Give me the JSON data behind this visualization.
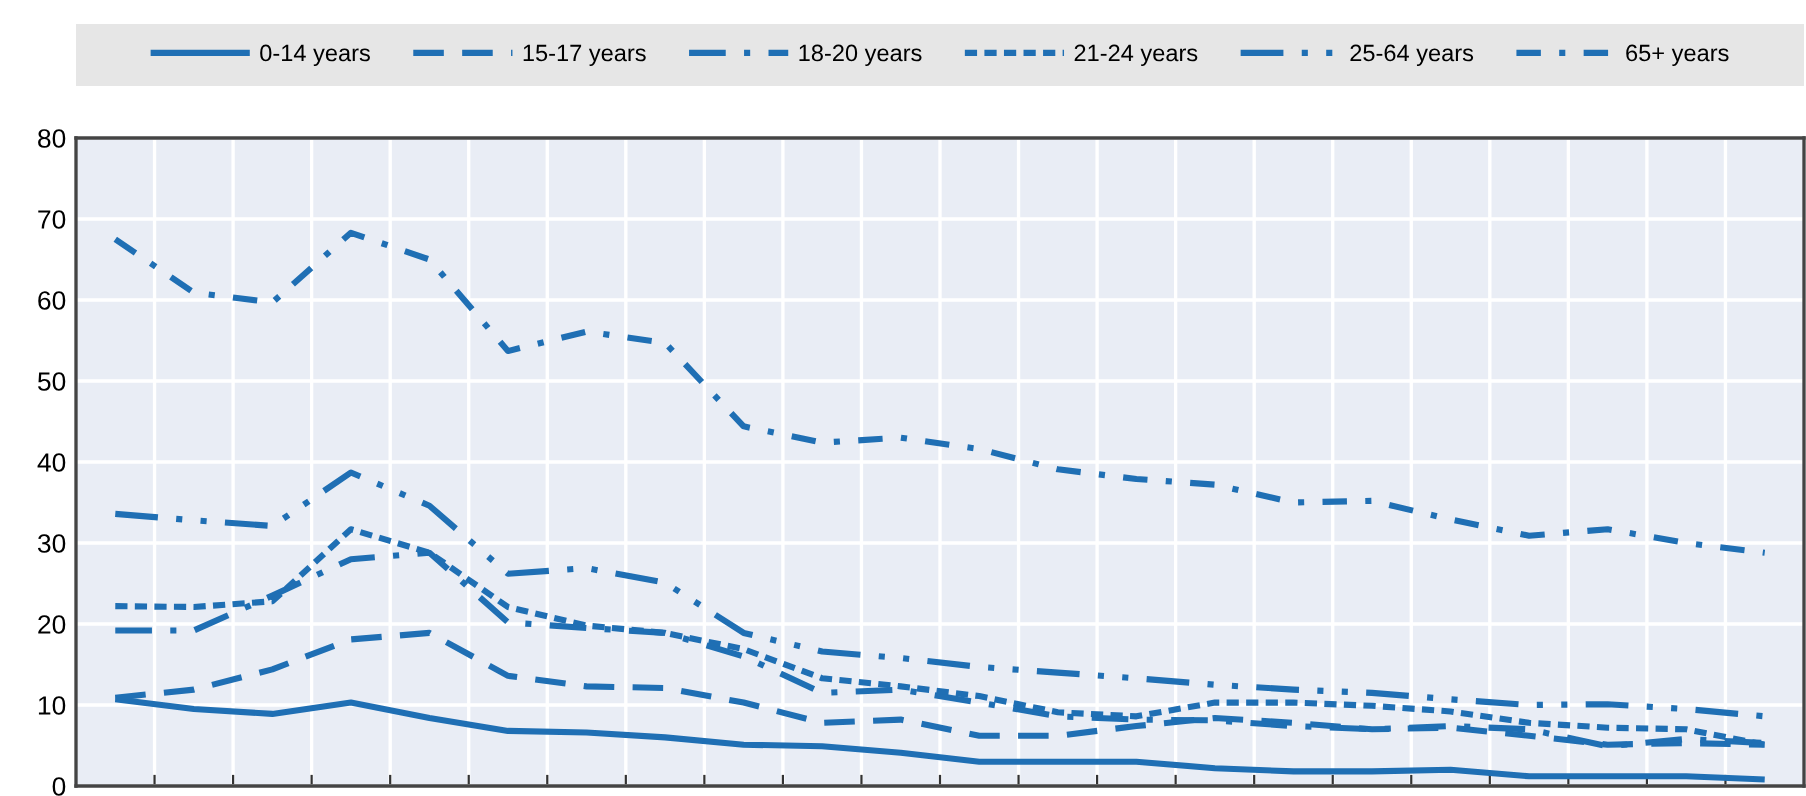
{
  "chart_data": {
    "type": "line",
    "categories": [
      null,
      null,
      null,
      null,
      null,
      null,
      null,
      null,
      null,
      null,
      null,
      null,
      null,
      null,
      null,
      null,
      null,
      null,
      null,
      null,
      null,
      null
    ],
    "series": [
      {
        "name": "0-14 years",
        "color": "#1f6fb4",
        "line_style": "solid",
        "values": [
          10.7,
          9.5,
          8.9,
          10.3,
          8.4,
          6.8,
          6.6,
          6.0,
          5.1,
          4.9,
          4.1,
          3.0,
          3.0,
          3.0,
          2.2,
          1.8,
          1.8,
          2.0,
          1.2,
          1.2,
          1.2,
          0.8
        ]
      },
      {
        "name": "15-17 years",
        "color": "#1f6fb4",
        "line_style": "dashed",
        "values": [
          10.9,
          11.9,
          14.4,
          18.1,
          18.9,
          13.6,
          12.3,
          12.1,
          10.3,
          7.8,
          8.2,
          6.2,
          6.2,
          7.4,
          8.4,
          7.8,
          7.0,
          7.2,
          6.2,
          5.1,
          5.3,
          5.1
        ]
      },
      {
        "name": "18-20 years",
        "color": "#1f6fb4",
        "line_style": "dashdot",
        "values": [
          19.2,
          19.2,
          23.5,
          28.0,
          28.8,
          20.2,
          19.5,
          18.9,
          16.0,
          11.5,
          11.9,
          10.3,
          8.6,
          8.2,
          8.1,
          7.4,
          7.0,
          7.4,
          7.0,
          4.9,
          5.8,
          5.3
        ]
      },
      {
        "name": "21-24 years",
        "color": "#1f6fb4",
        "line_style": "dotted",
        "values": [
          22.2,
          22.1,
          22.8,
          31.7,
          28.8,
          22.1,
          19.8,
          18.9,
          16.9,
          13.3,
          12.3,
          11.1,
          9.1,
          8.6,
          10.3,
          10.3,
          9.9,
          9.2,
          7.8,
          7.2,
          7.0,
          5.1
        ]
      },
      {
        "name": "25-64 years",
        "color": "#1f6fb4",
        "line_style": "dashdotdot",
        "values": [
          33.6,
          32.8,
          32.1,
          38.7,
          34.6,
          26.2,
          26.9,
          25.1,
          18.9,
          16.6,
          15.8,
          14.7,
          14.0,
          13.3,
          12.5,
          11.9,
          11.5,
          10.7,
          10.0,
          10.1,
          9.5,
          8.6
        ]
      },
      {
        "name": "65+ years",
        "color": "#1f6fb4",
        "line_style": "dashdotshort",
        "values": [
          67.5,
          60.9,
          59.7,
          68.3,
          65.0,
          53.7,
          56.1,
          54.7,
          44.4,
          42.4,
          43.0,
          41.6,
          39.1,
          37.9,
          37.2,
          35.0,
          35.2,
          32.9,
          30.9,
          31.7,
          30.0,
          28.8
        ]
      }
    ],
    "ylim": [
      0,
      80
    ],
    "yticks": [
      0,
      10,
      20,
      30,
      40,
      50,
      60,
      70,
      80
    ],
    "grid": true,
    "legend": "top"
  }
}
